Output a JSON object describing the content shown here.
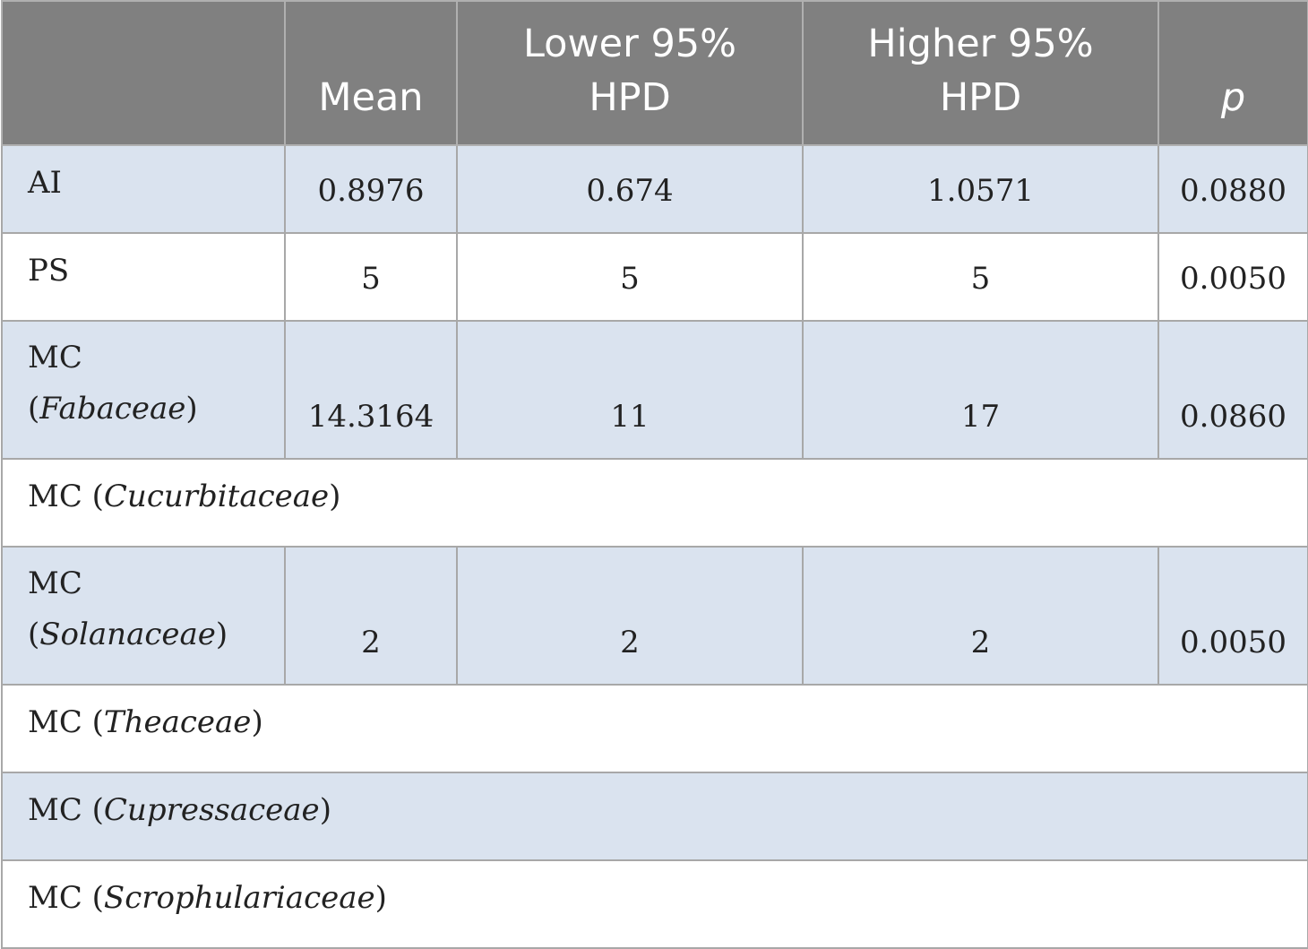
{
  "table": {
    "headers": [
      "",
      "Mean",
      "Lower 95%\nHPD",
      "Higher 95%\nHPD",
      "p"
    ],
    "rows": [
      {
        "label": "AI",
        "family": "",
        "mean": "0.8976",
        "lower": "0.674",
        "higher": "1.0571",
        "p": "0.0880"
      },
      {
        "label": "PS",
        "family": "",
        "mean": "5",
        "lower": "5",
        "higher": "5",
        "p": "0.0050"
      },
      {
        "label": "MC",
        "family": "Fabaceae",
        "mean": "14.3164",
        "lower": "11",
        "higher": "17",
        "p": "0.0860"
      },
      {
        "label": "MC",
        "family": "Cucurbitaceae"
      },
      {
        "label": "MC",
        "family": "Solanaceae",
        "mean": "2",
        "lower": "2",
        "higher": "2",
        "p": "0.0050"
      },
      {
        "label": "MC",
        "family": "Theaceae"
      },
      {
        "label": "MC",
        "family": "Cupressaceae"
      },
      {
        "label": "MC",
        "family": "Scrophulariaceae"
      }
    ]
  },
  "colors": {
    "header_bg": "#808080",
    "shaded_row_bg": "#dae3ef",
    "plain_row_bg": "#ffffff"
  }
}
